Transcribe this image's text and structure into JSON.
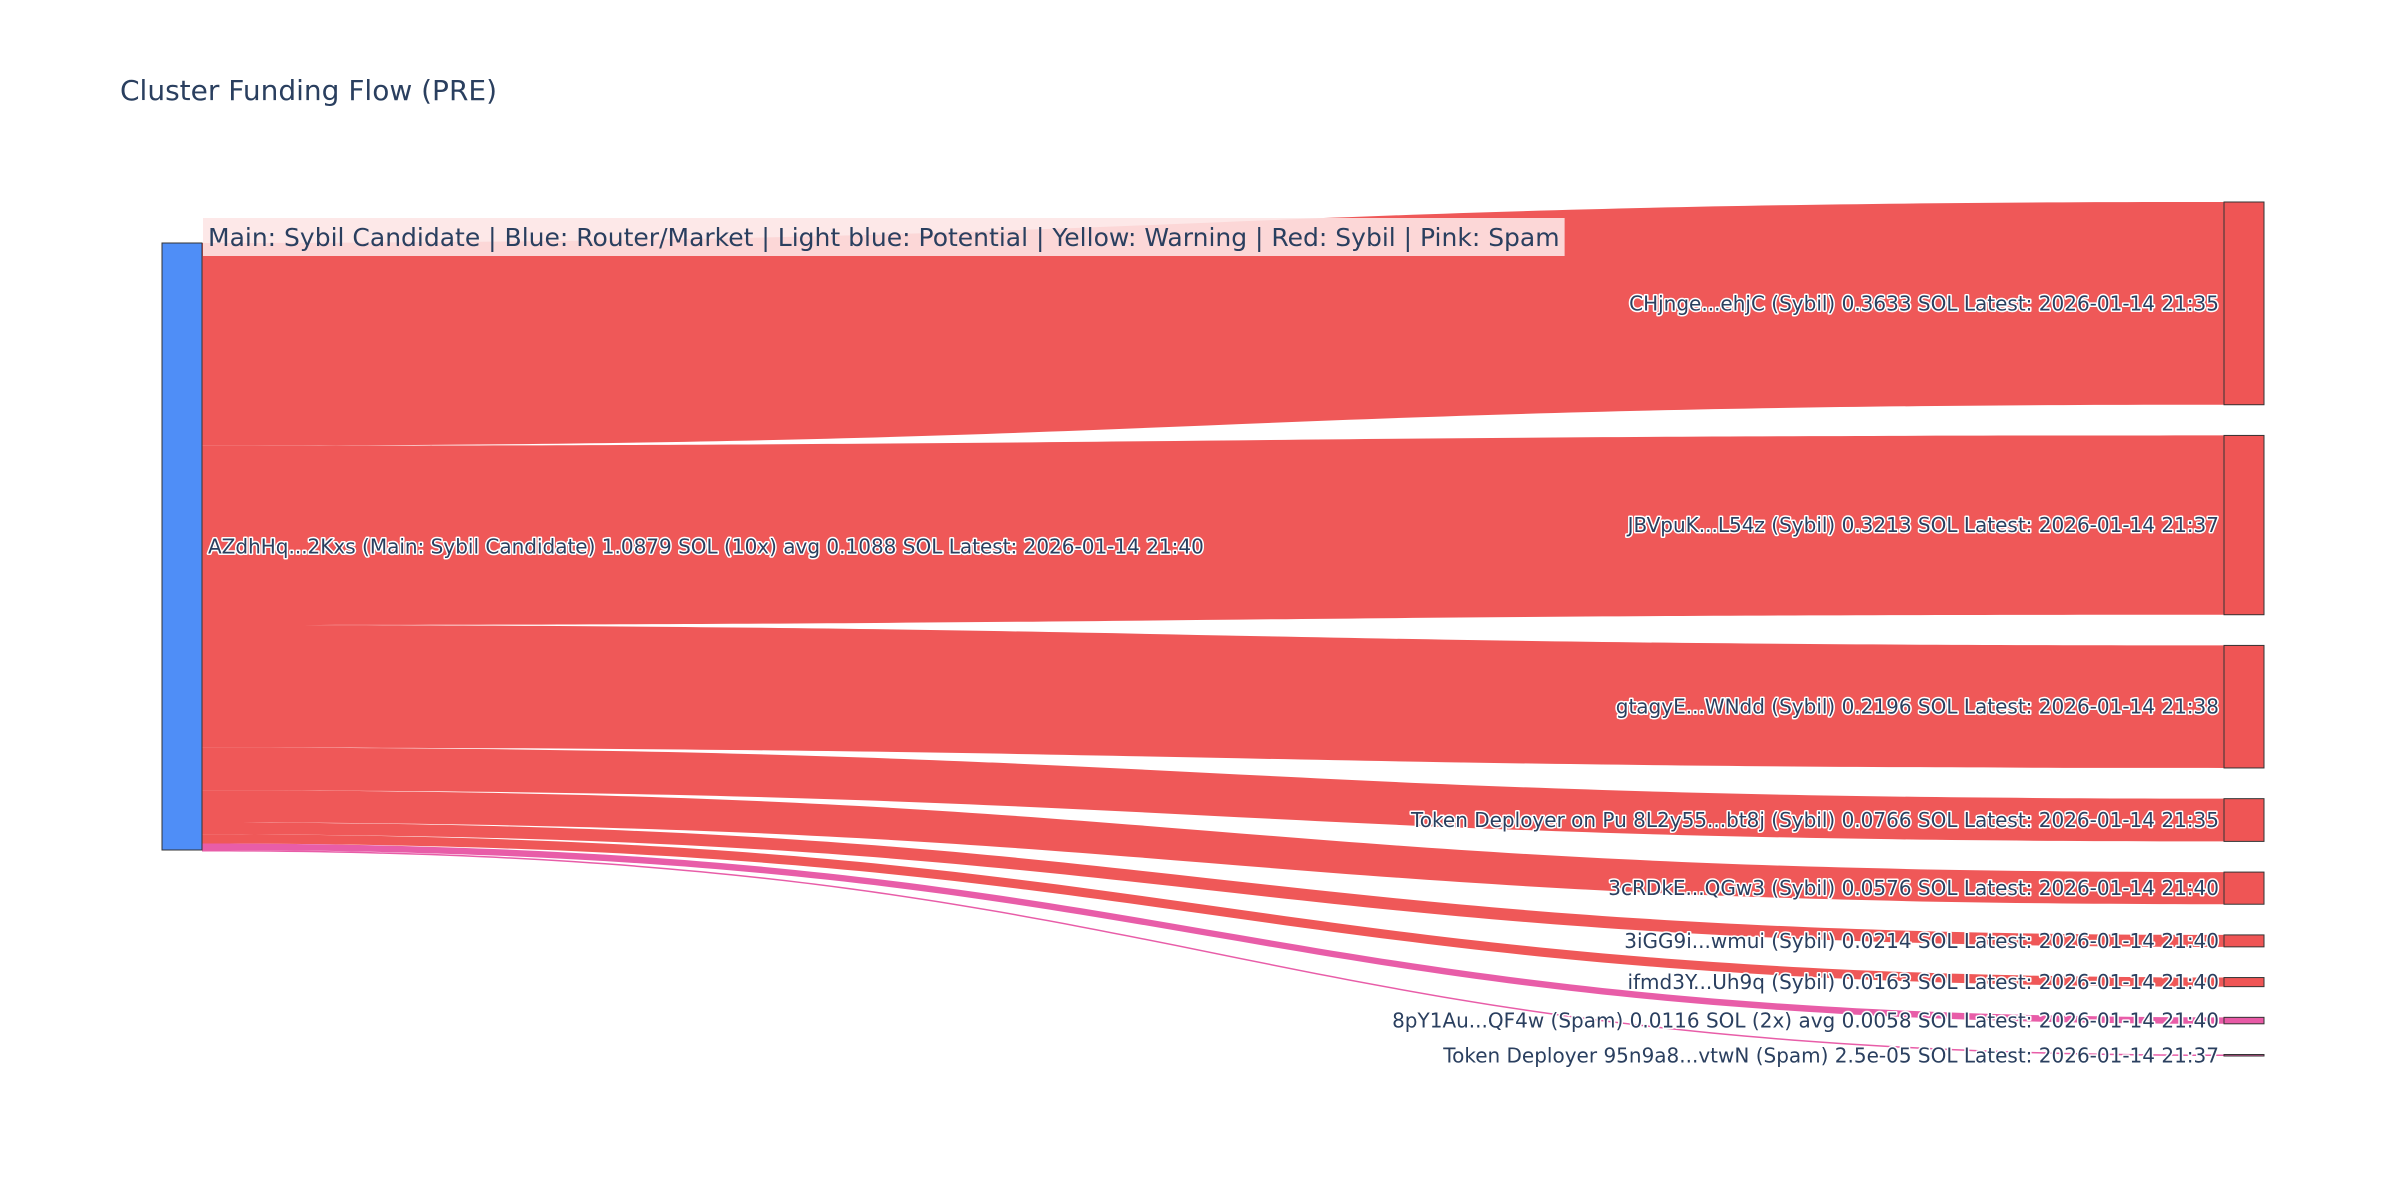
{
  "chart_data": {
    "type": "sankey",
    "title": "Cluster Funding Flow (PRE)",
    "legend_note": "Main: Sybil Candidate  |  Blue: Router/Market | Light blue: Potential | Yellow: Warning | Red: Sybil | Pink: Spam",
    "colors": {
      "main": "#4f8ef7",
      "sybil": "#ef5555",
      "spam": "#e85aa6",
      "node_border": "#333333",
      "legend_bg": "#fde5e5"
    },
    "source": {
      "label": "AZdhHq...2Kxs (Main: Sybil Candidate) 1.0879 SOL (10x) avg 0.1088 SOL Latest: 2026-01-14 21:40",
      "total": 1.0879
    },
    "targets": [
      {
        "label": "CHjnge...ehjC (Sybil) 0.3633 SOL Latest: 2026-01-14 21:35",
        "value": 0.3633,
        "category": "sybil"
      },
      {
        "label": "JBVpuK...L54z (Sybil) 0.3213 SOL Latest: 2026-01-14 21:37",
        "value": 0.3213,
        "category": "sybil"
      },
      {
        "label": "gtagyE...WNdd (Sybil) 0.2196 SOL Latest: 2026-01-14 21:38",
        "value": 0.2196,
        "category": "sybil"
      },
      {
        "label": "Token Deployer on Pu 8L2y55...bt8j (Sybil) 0.0766 SOL Latest: 2026-01-14 21:35",
        "value": 0.0766,
        "category": "sybil"
      },
      {
        "label": "3cRDkE...QGw3 (Sybil) 0.0576 SOL Latest: 2026-01-14 21:40",
        "value": 0.0576,
        "category": "sybil"
      },
      {
        "label": "3iGG9i...wmui (Sybil) 0.0214 SOL Latest: 2026-01-14 21:40",
        "value": 0.0214,
        "category": "sybil"
      },
      {
        "label": "ifmd3Y...Uh9q (Sybil) 0.0163 SOL Latest: 2026-01-14 21:40",
        "value": 0.0163,
        "category": "sybil"
      },
      {
        "label": "8pY1Au...QF4w (Spam) 0.0116 SOL (2x) avg 0.0058 SOL Latest: 2026-01-14 21:40",
        "value": 0.0116,
        "category": "spam"
      },
      {
        "label": "Token Deployer 95n9a8...vtwN (Spam) 2.5e-05 SOL Latest: 2026-01-14 21:37",
        "value": 2.5e-05,
        "category": "spam"
      }
    ]
  }
}
